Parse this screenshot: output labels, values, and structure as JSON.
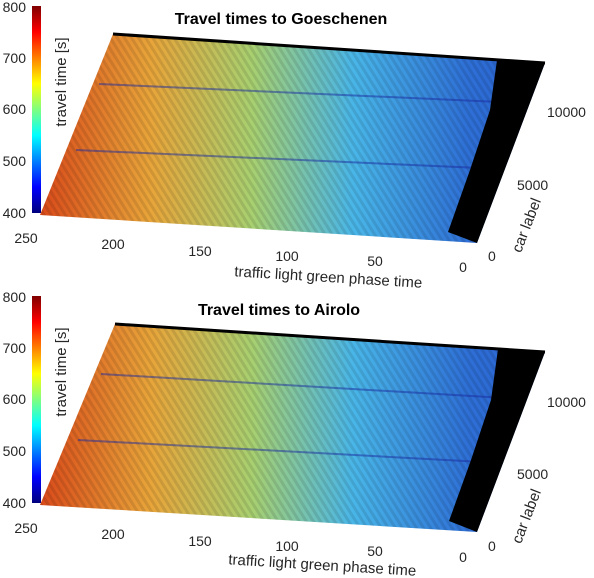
{
  "colormap": [
    "#00007f",
    "#0000ff",
    "#007fff",
    "#00ffff",
    "#7fff7f",
    "#ffff00",
    "#ff7f00",
    "#ff0000",
    "#7f0000"
  ],
  "chart_data": [
    {
      "type": "heatmap",
      "title": "Travel times to Goeschenen",
      "xlabel": "traffic light green phase time",
      "ylabel": "car label",
      "colorbar_label": "travel time [s]",
      "x_ticks": [
        "250",
        "200",
        "150",
        "100",
        "50",
        "0"
      ],
      "y_ticks": [
        "0",
        "5000",
        "10000"
      ],
      "colorbar_ticks": [
        "400",
        "500",
        "600",
        "700",
        "800"
      ],
      "xlim": [
        0,
        250
      ],
      "ylim": [
        0,
        12500
      ],
      "clim": [
        400,
        800
      ]
    },
    {
      "type": "heatmap",
      "title": "Travel times to Airolo",
      "xlabel": "traffic light green phase time",
      "ylabel": "car label",
      "colorbar_label": "travel time [s]",
      "x_ticks": [
        "250",
        "200",
        "150",
        "100",
        "50",
        "0"
      ],
      "y_ticks": [
        "0",
        "5000",
        "10000"
      ],
      "colorbar_ticks": [
        "400",
        "500",
        "600",
        "700",
        "800"
      ],
      "xlim": [
        0,
        250
      ],
      "ylim": [
        0,
        12500
      ],
      "clim": [
        400,
        800
      ]
    }
  ]
}
